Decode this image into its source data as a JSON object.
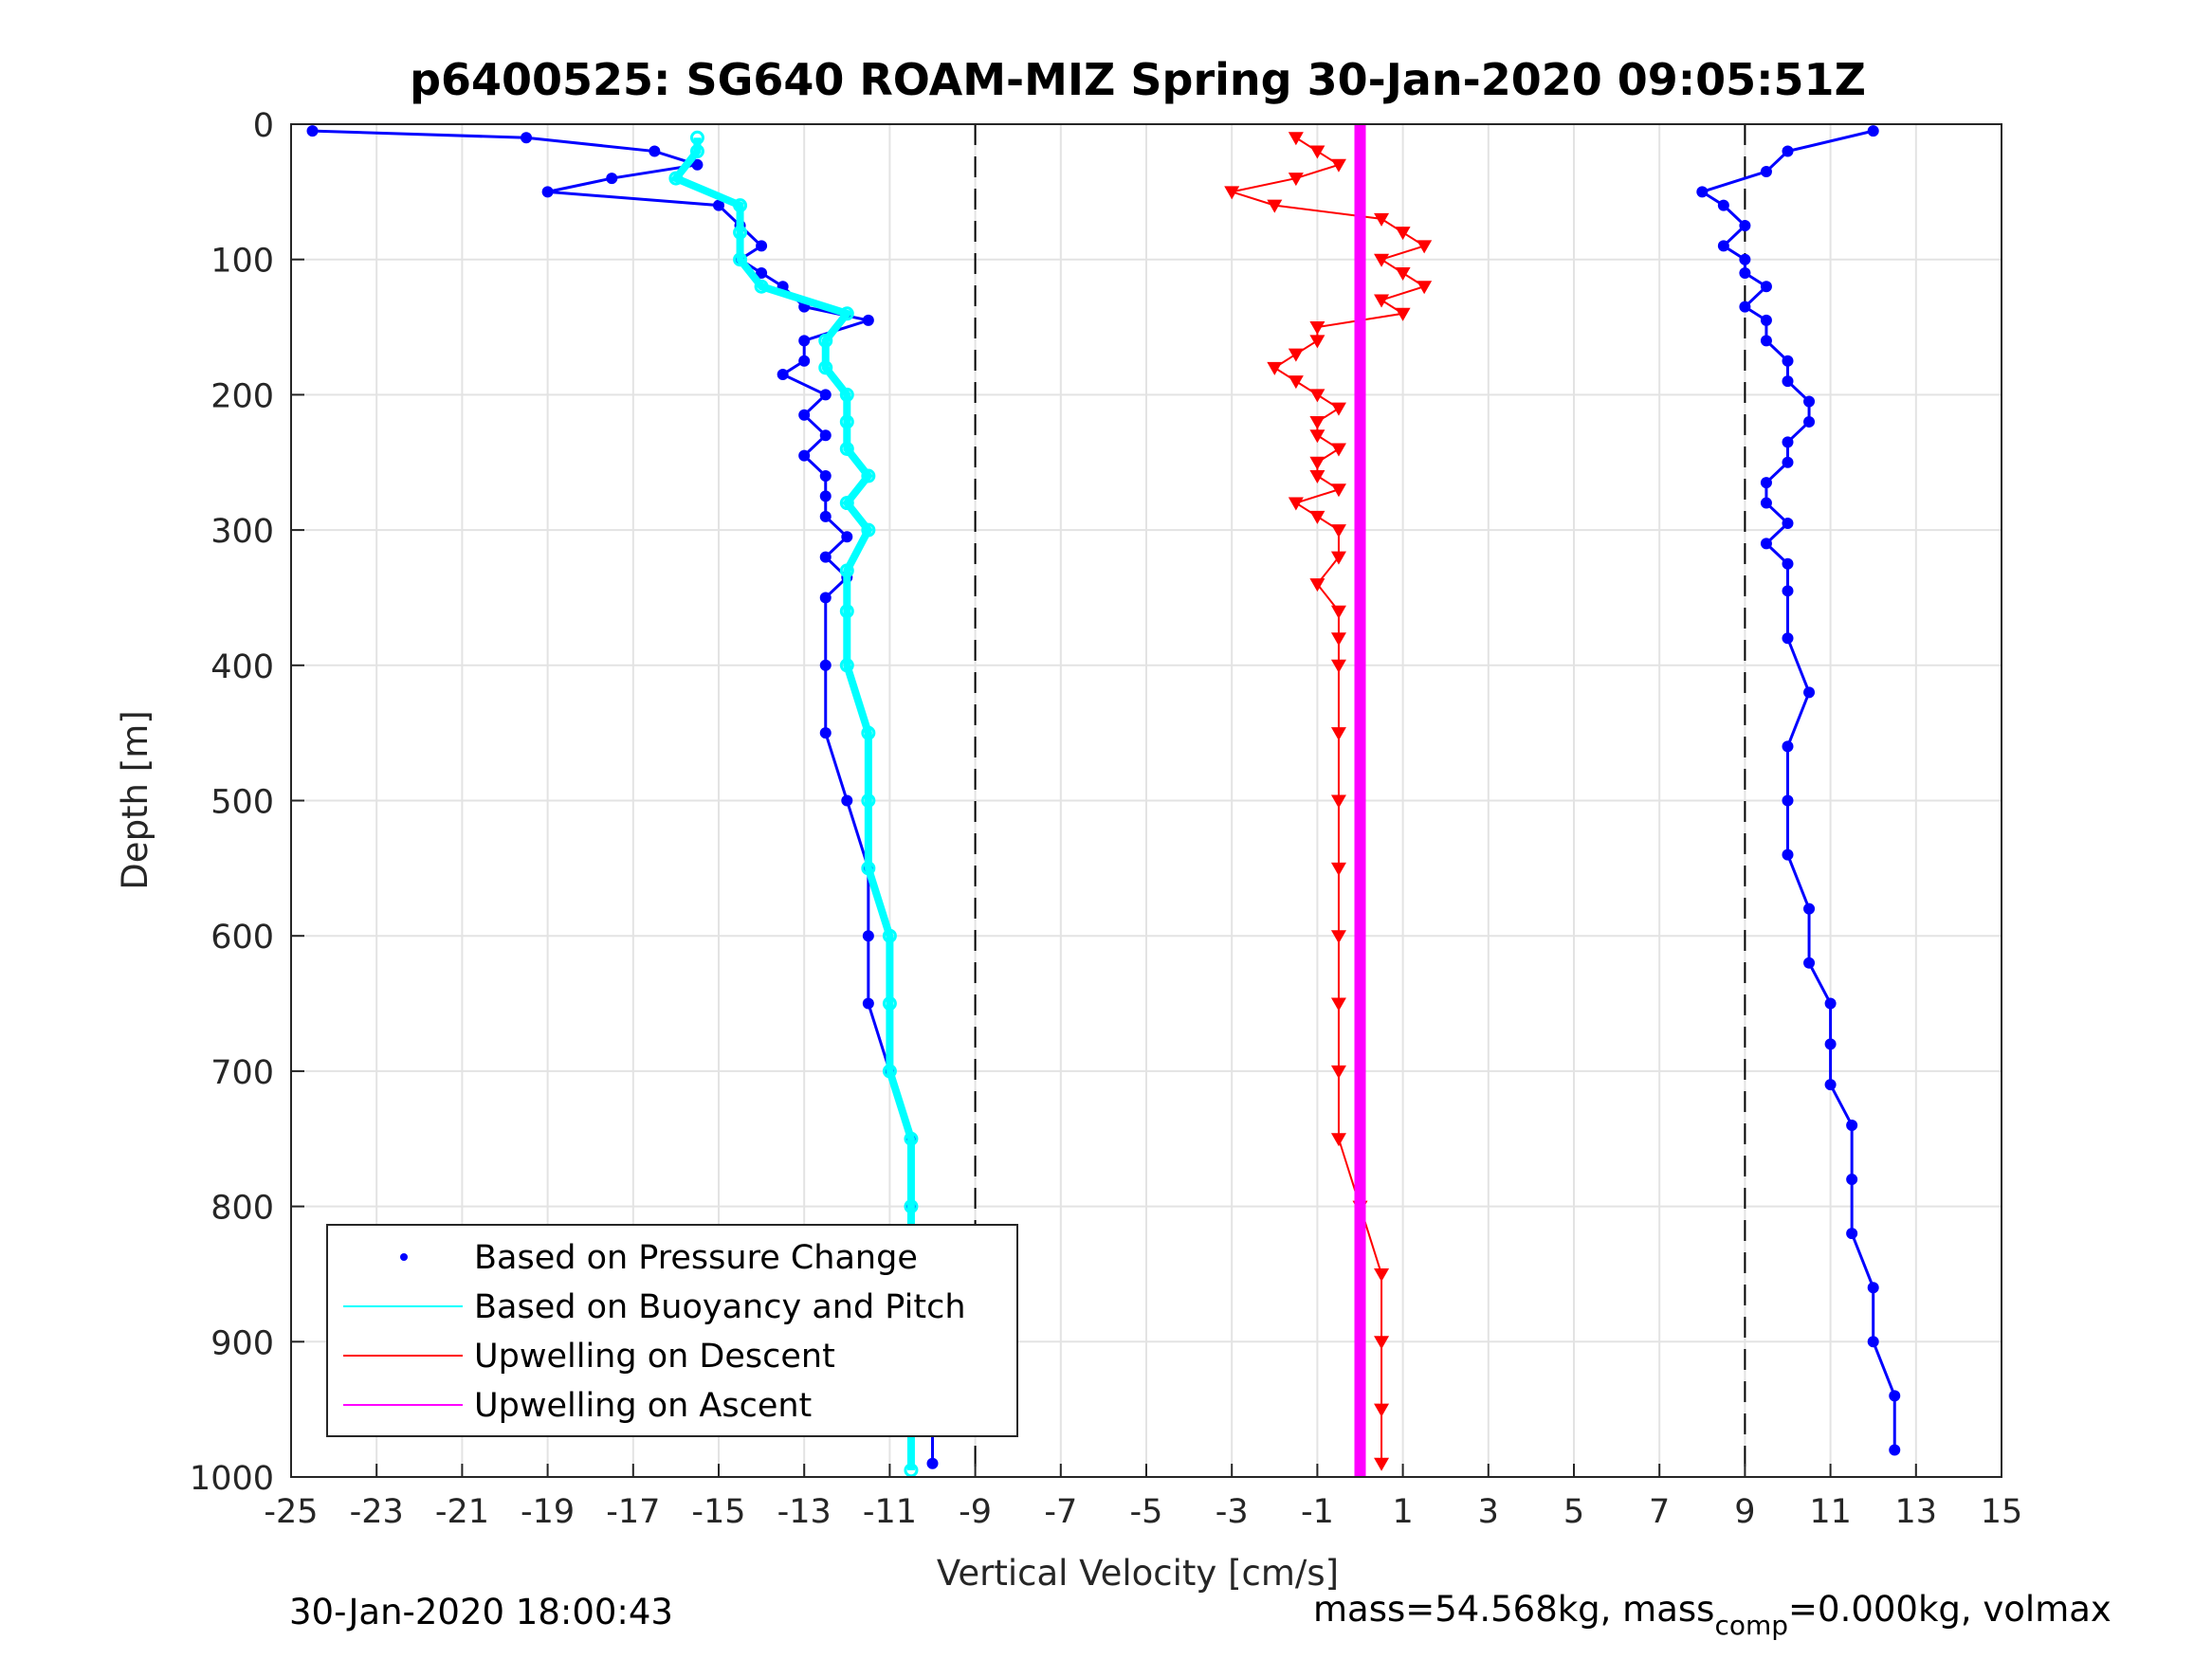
{
  "chart_data": {
    "type": "scatter",
    "title": "p6400525: SG640 ROAM-MIZ Spring 30-Jan-2020 09:05:51Z",
    "xlabel": "Vertical Velocity [cm/s]",
    "ylabel": "Depth [m]",
    "xlim": [
      -25,
      15
    ],
    "ylim": [
      0,
      1000
    ],
    "y_reversed": true,
    "grid": true,
    "x_ticks": [
      "-25",
      "-23",
      "-21",
      "-19",
      "-17",
      "-15",
      "-13",
      "-11",
      "-9",
      "-7",
      "-5",
      "-3",
      "-1",
      "1",
      "3",
      "5",
      "7",
      "9",
      "11",
      "13",
      "15"
    ],
    "y_ticks": [
      "0",
      "100",
      "200",
      "300",
      "400",
      "500",
      "600",
      "700",
      "800",
      "900",
      "1000"
    ],
    "vlines": [
      -9,
      9
    ],
    "legend": {
      "position": "bottom-left",
      "entries": [
        "Based on Pressure Change",
        "Based on Buoyancy and Pitch",
        "Upwelling on Descent",
        "Upwelling on Ascent"
      ]
    },
    "series": [
      {
        "name": "Based on Pressure Change",
        "color": "#0000ff",
        "marker": "dot",
        "descent_depth": [
          5,
          10,
          20,
          30,
          40,
          50,
          60,
          75,
          90,
          100,
          110,
          120,
          135,
          145,
          160,
          175,
          185,
          200,
          215,
          230,
          245,
          260,
          275,
          290,
          305,
          320,
          335,
          350,
          400,
          450,
          500,
          550,
          600,
          650,
          700,
          750,
          800,
          850,
          900,
          950,
          990
        ],
        "descent_velocity": [
          -24.5,
          -19.5,
          -16.5,
          -15.5,
          -17.5,
          -19,
          -15,
          -14.5,
          -14,
          -14.5,
          -14,
          -13.5,
          -13,
          -11.5,
          -13,
          -13,
          -13.5,
          -12.5,
          -13,
          -12.5,
          -13,
          -12.5,
          -12.5,
          -12.5,
          -12,
          -12.5,
          -12,
          -12.5,
          -12.5,
          -12.5,
          -12,
          -11.5,
          -11.5,
          -11.5,
          -11,
          -10.5,
          -10.5,
          -10.5,
          -10,
          -10,
          -10
        ],
        "ascent_depth": [
          5,
          20,
          35,
          50,
          60,
          75,
          90,
          100,
          110,
          120,
          135,
          145,
          160,
          175,
          190,
          205,
          220,
          235,
          250,
          265,
          280,
          295,
          310,
          325,
          345,
          380,
          420,
          460,
          500,
          540,
          580,
          620,
          650,
          680,
          710,
          740,
          780,
          820,
          860,
          900,
          940,
          980
        ],
        "ascent_velocity": [
          12,
          10,
          9.5,
          8,
          8.5,
          9,
          8.5,
          9,
          9,
          9.5,
          9,
          9.5,
          9.5,
          10,
          10,
          10.5,
          10.5,
          10,
          10,
          9.5,
          9.5,
          10,
          9.5,
          10,
          10,
          10,
          10.5,
          10,
          10,
          10,
          10.5,
          10.5,
          11,
          11,
          11,
          11.5,
          11.5,
          11.5,
          12,
          12,
          12.5,
          12.5
        ]
      },
      {
        "name": "Based on Buoyancy and Pitch",
        "color": "#00ffff",
        "marker": "line",
        "depth": [
          10,
          20,
          40,
          60,
          80,
          100,
          120,
          140,
          160,
          180,
          200,
          220,
          240,
          260,
          280,
          300,
          330,
          360,
          400,
          450,
          500,
          550,
          600,
          650,
          700,
          750,
          800,
          850,
          900,
          950,
          995
        ],
        "velocity": [
          -15.5,
          -15.5,
          -16,
          -14.5,
          -14.5,
          -14.5,
          -14,
          -12,
          -12.5,
          -12.5,
          -12,
          -12,
          -12,
          -11.5,
          -12,
          -11.5,
          -12,
          -12,
          -12,
          -11.5,
          -11.5,
          -11.5,
          -11,
          -11,
          -11,
          -10.5,
          -10.5,
          -10.5,
          -10.5,
          -10.5,
          -10.5
        ]
      },
      {
        "name": "Upwelling on Descent",
        "color": "#ff0000",
        "marker": "triangle-down",
        "depth": [
          10,
          20,
          30,
          40,
          50,
          60,
          70,
          80,
          90,
          100,
          110,
          120,
          130,
          140,
          150,
          160,
          170,
          180,
          190,
          200,
          210,
          220,
          230,
          240,
          250,
          260,
          270,
          280,
          290,
          300,
          320,
          340,
          360,
          380,
          400,
          450,
          500,
          550,
          600,
          650,
          700,
          750,
          800,
          850,
          900,
          950,
          990
        ],
        "velocity": [
          -1.5,
          -1,
          -0.5,
          -1.5,
          -3,
          -2,
          0.5,
          1,
          1.5,
          0.5,
          1,
          1.5,
          0.5,
          1,
          -1,
          -1,
          -1.5,
          -2,
          -1.5,
          -1,
          -0.5,
          -1,
          -1,
          -0.5,
          -1,
          -1,
          -0.5,
          -1.5,
          -1,
          -0.5,
          -0.5,
          -1,
          -0.5,
          -0.5,
          -0.5,
          -0.5,
          -0.5,
          -0.5,
          -0.5,
          -0.5,
          -0.5,
          -0.5,
          0,
          0.5,
          0.5,
          0.5,
          0.5
        ]
      },
      {
        "name": "Upwelling on Ascent",
        "color": "#ff00ff",
        "marker": "line",
        "depth": [
          0,
          1000
        ],
        "velocity": [
          0,
          0
        ]
      }
    ]
  },
  "footer": {
    "timestamp": "30-Jan-2020 18:00:43",
    "mass_text_a": "mass=54.568kg, mass",
    "mass_sub": "comp",
    "mass_text_b": "=0.000kg, volmax"
  }
}
